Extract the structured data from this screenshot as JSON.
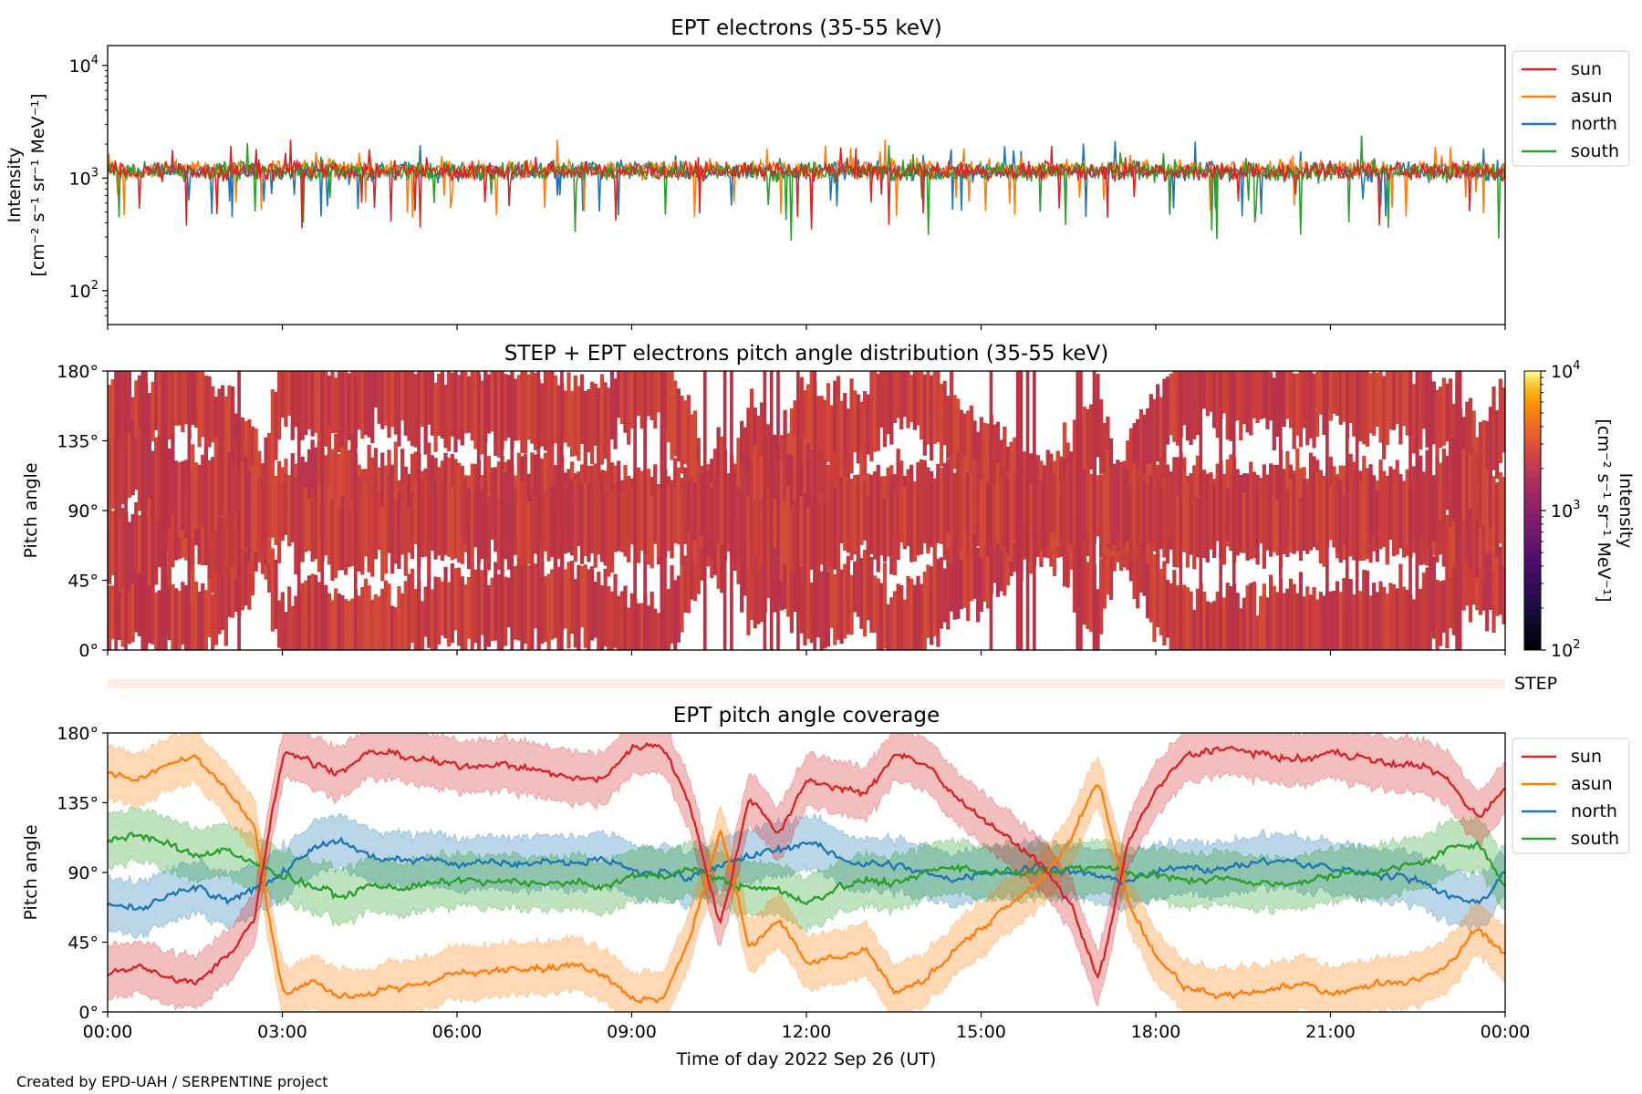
{
  "footer": "Created by EPD-UAH / SERPENTINE project",
  "colors": {
    "sun": "#d62728",
    "asun": "#ff7f0e",
    "north": "#1f77b4",
    "south": "#2ca02c",
    "pad_fill": "#c8383f",
    "step_band": "#fdebe5"
  },
  "chart_data": [
    {
      "type": "line",
      "title": "EPT electrons (35-55 keV)",
      "ylabel_line1": "Intensity",
      "ylabel_line2": "[cm⁻² s⁻¹ sr⁻¹ MeV⁻¹]",
      "yscale": "log",
      "ylim": [
        50,
        15000
      ],
      "ytick_labels": [
        {
          "value": 100,
          "base": "10",
          "exp": "2"
        },
        {
          "value": 1000,
          "base": "10",
          "exp": "3"
        },
        {
          "value": 10000,
          "base": "10",
          "exp": "4"
        }
      ],
      "xlim_hours": [
        0,
        24
      ],
      "legend": [
        "sun",
        "asun",
        "north",
        "south"
      ],
      "legend_position": "outside right, top",
      "series": [
        {
          "name": "sun",
          "typical": 1150,
          "typical_low": 700,
          "typical_high": 1700,
          "min": 310,
          "max": 2200
        },
        {
          "name": "asun",
          "typical": 1200,
          "typical_low": 750,
          "typical_high": 1800,
          "min": 420,
          "max": 2200
        },
        {
          "name": "north",
          "typical": 1150,
          "typical_low": 700,
          "typical_high": 1750,
          "min": 440,
          "max": 2150
        },
        {
          "name": "south",
          "typical": 1150,
          "typical_low": 700,
          "typical_high": 1800,
          "min": 260,
          "max": 2400
        }
      ]
    },
    {
      "type": "heatmap",
      "title": "STEP + EPT electrons pitch angle distribution (35-55 keV)",
      "ylabel": "Pitch angle",
      "ylim": [
        0,
        180
      ],
      "ytick_labels": [
        "0°",
        "45°",
        "90°",
        "135°",
        "180°"
      ],
      "ytick_values": [
        0,
        45,
        90,
        135,
        180
      ],
      "xlim_hours": [
        0,
        24
      ],
      "typical_intensity": 1000,
      "colorbar": {
        "scale": "log",
        "range": [
          100,
          10000
        ],
        "label_line1": "Intensity",
        "label_line2": "[cm⁻² s⁻¹ sr⁻¹ MeV⁻¹]",
        "tick_labels": [
          {
            "value": 100,
            "base": "10",
            "exp": "2"
          },
          {
            "value": 1000,
            "base": "10",
            "exp": "3"
          },
          {
            "value": 10000,
            "base": "10",
            "exp": "4"
          }
        ],
        "colormap": "inferno"
      },
      "step_label": "STEP"
    },
    {
      "type": "line",
      "title": "EPT pitch angle coverage",
      "ylabel": "Pitch angle",
      "xlabel": "Time of day 2022 Sep 26 (UT)",
      "ylim": [
        0,
        180
      ],
      "ytick_labels": [
        "0°",
        "45°",
        "90°",
        "135°",
        "180°"
      ],
      "ytick_values": [
        0,
        45,
        90,
        135,
        180
      ],
      "xlim_hours": [
        0,
        24
      ],
      "xtick_labels": [
        "00:00",
        "03:00",
        "06:00",
        "09:00",
        "12:00",
        "15:00",
        "18:00",
        "21:00",
        "00:00"
      ],
      "xtick_hours": [
        0,
        3,
        6,
        9,
        12,
        15,
        18,
        21,
        24
      ],
      "legend": [
        "sun",
        "asun",
        "north",
        "south"
      ],
      "legend_position": "outside right, top",
      "band_halfwidth_deg": 15,
      "series": [
        {
          "name": "sun",
          "hours": [
            0,
            0.5,
            1.0,
            1.5,
            2.0,
            2.5,
            2.75,
            3.0,
            3.5,
            4.0,
            4.5,
            5.0,
            5.5,
            6.0,
            6.5,
            7.0,
            7.5,
            8.0,
            8.5,
            9.0,
            9.5,
            10.0,
            10.5,
            11.0,
            11.5,
            12.0,
            12.5,
            13.0,
            13.5,
            14.0,
            14.5,
            15.0,
            15.5,
            16.0,
            16.5,
            17.0,
            17.5,
            18.0,
            18.5,
            19.0,
            19.5,
            20.0,
            20.5,
            21.0,
            21.5,
            22.0,
            22.5,
            23.0,
            23.5,
            24.0
          ],
          "values": [
            25,
            30,
            22,
            18,
            35,
            60,
            120,
            170,
            160,
            155,
            168,
            165,
            162,
            158,
            160,
            158,
            155,
            150,
            150,
            172,
            172,
            130,
            55,
            140,
            115,
            150,
            145,
            140,
            168,
            160,
            140,
            125,
            110,
            95,
            70,
            20,
            110,
            145,
            165,
            170,
            168,
            165,
            162,
            168,
            165,
            160,
            160,
            150,
            125,
            145
          ]
        },
        {
          "name": "asun",
          "hours": [
            0,
            0.5,
            1.0,
            1.5,
            2.0,
            2.5,
            2.75,
            3.0,
            3.5,
            4.0,
            4.5,
            5.0,
            5.5,
            6.0,
            6.5,
            7.0,
            7.5,
            8.0,
            8.5,
            9.0,
            9.5,
            10.0,
            10.5,
            11.0,
            11.5,
            12.0,
            12.5,
            13.0,
            13.5,
            14.0,
            14.5,
            15.0,
            15.5,
            16.0,
            16.5,
            17.0,
            17.5,
            18.0,
            18.5,
            19.0,
            19.5,
            20.0,
            20.5,
            21.0,
            21.5,
            22.0,
            22.5,
            23.0,
            23.5,
            24.0
          ],
          "values": [
            155,
            150,
            160,
            165,
            145,
            120,
            60,
            10,
            20,
            10,
            12,
            15,
            20,
            25,
            25,
            30,
            28,
            30,
            25,
            8,
            8,
            50,
            120,
            40,
            60,
            30,
            35,
            40,
            12,
            20,
            40,
            55,
            70,
            85,
            110,
            150,
            70,
            35,
            15,
            10,
            12,
            15,
            18,
            12,
            15,
            20,
            20,
            30,
            55,
            35
          ]
        },
        {
          "name": "north",
          "hours": [
            0,
            0.5,
            1.0,
            1.5,
            2.0,
            2.5,
            3.0,
            3.5,
            4.0,
            4.5,
            5.0,
            5.5,
            6.0,
            6.5,
            7.0,
            7.5,
            8.0,
            8.5,
            9.0,
            9.5,
            10.0,
            10.5,
            11.0,
            11.5,
            12.0,
            12.5,
            13.0,
            13.5,
            14.0,
            14.5,
            15.0,
            15.5,
            16.0,
            16.5,
            17.0,
            17.5,
            18.0,
            18.5,
            19.0,
            19.5,
            20.0,
            20.5,
            21.0,
            21.5,
            22.0,
            22.5,
            23.0,
            23.5,
            24.0
          ],
          "values": [
            70,
            65,
            75,
            80,
            70,
            80,
            90,
            105,
            110,
            100,
            98,
            100,
            95,
            98,
            95,
            98,
            96,
            100,
            90,
            90,
            88,
            95,
            100,
            105,
            110,
            100,
            95,
            95,
            90,
            85,
            90,
            90,
            95,
            90,
            88,
            85,
            90,
            95,
            92,
            95,
            98,
            96,
            92,
            90,
            88,
            85,
            75,
            70,
            90
          ]
        },
        {
          "name": "south",
          "hours": [
            0,
            0.5,
            1.0,
            1.5,
            2.0,
            2.5,
            3.0,
            3.5,
            4.0,
            4.5,
            5.0,
            5.5,
            6.0,
            6.5,
            7.0,
            7.5,
            8.0,
            8.5,
            9.0,
            9.5,
            10.0,
            10.5,
            11.0,
            11.5,
            12.0,
            12.5,
            13.0,
            13.5,
            14.0,
            14.5,
            15.0,
            15.5,
            16.0,
            16.5,
            17.0,
            17.5,
            18.0,
            18.5,
            19.0,
            19.5,
            20.0,
            20.5,
            21.0,
            21.5,
            22.0,
            22.5,
            23.0,
            23.5,
            24.0
          ],
          "values": [
            110,
            115,
            108,
            100,
            105,
            95,
            88,
            80,
            75,
            82,
            80,
            82,
            85,
            83,
            85,
            82,
            84,
            80,
            88,
            88,
            92,
            85,
            80,
            78,
            70,
            80,
            85,
            82,
            90,
            95,
            90,
            92,
            90,
            92,
            95,
            90,
            88,
            85,
            86,
            85,
            82,
            84,
            88,
            90,
            92,
            95,
            105,
            110,
            80
          ]
        }
      ]
    }
  ]
}
